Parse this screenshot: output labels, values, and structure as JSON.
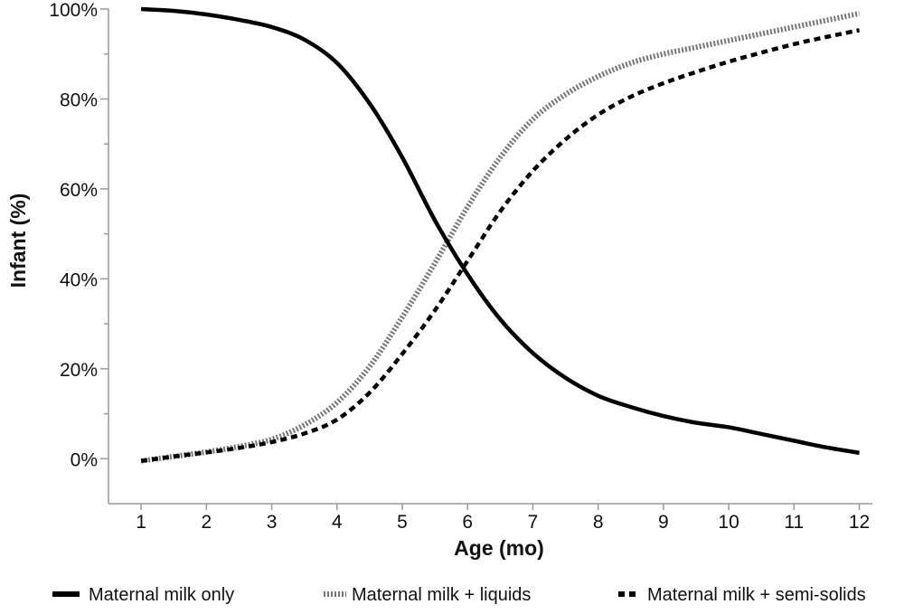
{
  "chart_data": {
    "type": "line",
    "xlabel": "Age (mo)",
    "ylabel": "Infant (%)",
    "xlim": [
      0.5,
      12.2
    ],
    "ylim": [
      -10,
      100
    ],
    "x_ticks": [
      "1",
      "2",
      "3",
      "4",
      "5",
      "6",
      "7",
      "8",
      "9",
      "10",
      "11",
      "12"
    ],
    "y_ticks": [
      "0%",
      "20%",
      "40%",
      "60%",
      "80%",
      "100%"
    ],
    "y_tick_values": [
      0,
      20,
      40,
      60,
      80,
      100
    ],
    "grid": false,
    "legend_position": "bottom",
    "x": [
      1,
      1.5,
      2,
      2.5,
      3,
      3.5,
      4,
      4.5,
      5,
      5.5,
      6,
      6.5,
      7,
      7.5,
      8,
      8.5,
      9,
      9.5,
      10,
      10.5,
      11,
      11.5,
      12
    ],
    "series": [
      {
        "name": "Maternal milk only",
        "style": "solid",
        "color": "#000000",
        "values": [
          100,
          99.6,
          98.8,
          97.6,
          96,
          93.2,
          88,
          79,
          67,
          53,
          41,
          31,
          23.5,
          18,
          14,
          11.5,
          9.5,
          8,
          7,
          5.5,
          4,
          2.5,
          1.3
        ]
      },
      {
        "name": "Maternal milk + liquids",
        "style": "dotted",
        "color": "#777777",
        "values": [
          -0.5,
          0.5,
          1.5,
          2.7,
          4.3,
          7.5,
          12.5,
          20.5,
          31.5,
          43.5,
          56,
          67,
          75.5,
          81,
          85,
          88,
          90,
          91.5,
          93,
          94.5,
          96,
          97.5,
          99
        ]
      },
      {
        "name": "Maternal milk + semi-solids",
        "style": "dashed",
        "color": "#000000",
        "values": [
          -0.5,
          0.5,
          1.4,
          2.4,
          3.7,
          5.6,
          8.7,
          14.7,
          23.3,
          33,
          44,
          55,
          64,
          71,
          76.5,
          80.5,
          83.5,
          86,
          88.3,
          90.3,
          92.2,
          93.8,
          95.3
        ]
      }
    ]
  }
}
